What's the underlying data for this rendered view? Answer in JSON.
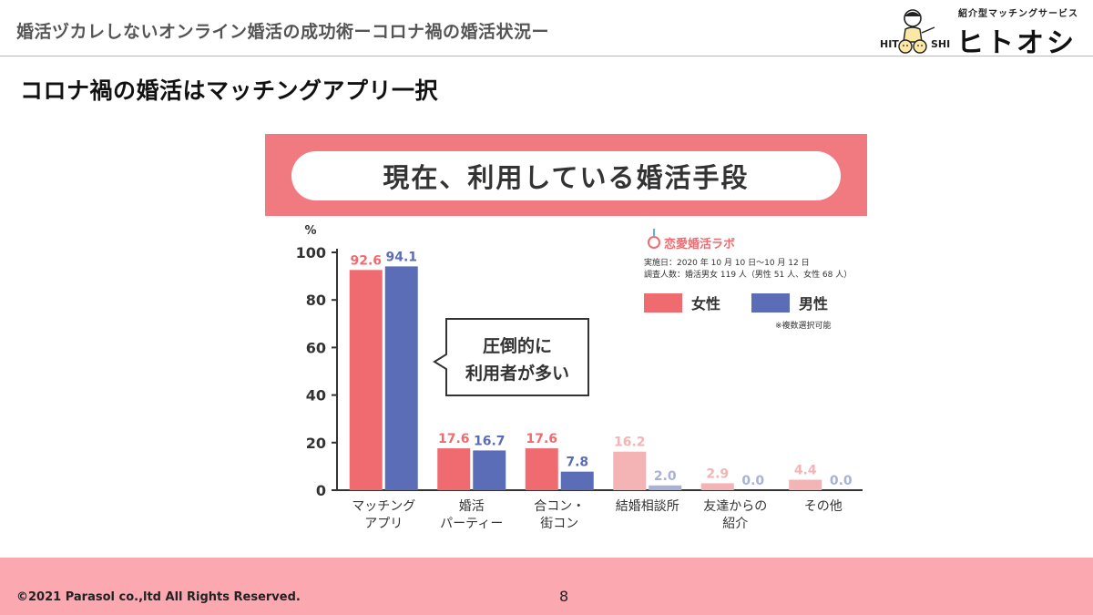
{
  "header": {
    "title": "婚活ヅカレしないオンライン婚活の成功術ーコロナ禍の婚活状況ー"
  },
  "logo": {
    "tagline": "紹介型マッチングサービス",
    "name": "ヒトオシ",
    "hit": "HIT",
    "shi": "SHI"
  },
  "slide": {
    "heading": "コロナ禍の婚活はマッチングアプリ一択"
  },
  "figure": {
    "banner_title": "現在、利用している婚活手段",
    "source_name": "恋愛婚活ラボ",
    "survey_date": "実施日：2020 年 10 月 10 日〜10 月 12 日",
    "survey_people": "調査人数：婚活男女 119 人（男性 51 人、女性 68 人）",
    "note": "※複数選択可能",
    "callout_line1": "圧倒的に",
    "callout_line2": "利用者が多い"
  },
  "colors": {
    "female": "#f06b70",
    "male": "#5c6db8",
    "female_light": "#f4b3b4",
    "male_light": "#a9b1d8",
    "banner": "#f07a80",
    "footer": "#fba8b0"
  },
  "chart_data": {
    "type": "bar",
    "title": "現在、利用している婚活手段",
    "ylabel": "%",
    "ylim": [
      0,
      100
    ],
    "yticks": [
      0,
      20,
      40,
      60,
      80,
      100
    ],
    "categories": [
      [
        "マッチング",
        "アプリ"
      ],
      [
        "婚活",
        "パーティー"
      ],
      [
        "合コン・",
        "街コン"
      ],
      [
        "結婚相談所"
      ],
      [
        "友達からの",
        "紹介"
      ],
      [
        "その他"
      ]
    ],
    "series": [
      {
        "name": "女性",
        "values": [
          92.6,
          17.6,
          17.6,
          16.2,
          2.9,
          4.4
        ],
        "labels": [
          "92.6",
          "17.6",
          "17.6",
          "16.2",
          "2.9",
          "4.4"
        ]
      },
      {
        "name": "男性",
        "values": [
          94.1,
          16.7,
          7.8,
          2.0,
          0.0,
          0.0
        ],
        "labels": [
          "94.1",
          "16.7",
          "7.8",
          "2.0",
          "0.0",
          "0.0"
        ]
      }
    ],
    "legend": "top-right",
    "grid": false
  },
  "footer": {
    "copyright": "©2021 Parasol co.,ltd  All Rights Reserved.",
    "page": "8"
  }
}
